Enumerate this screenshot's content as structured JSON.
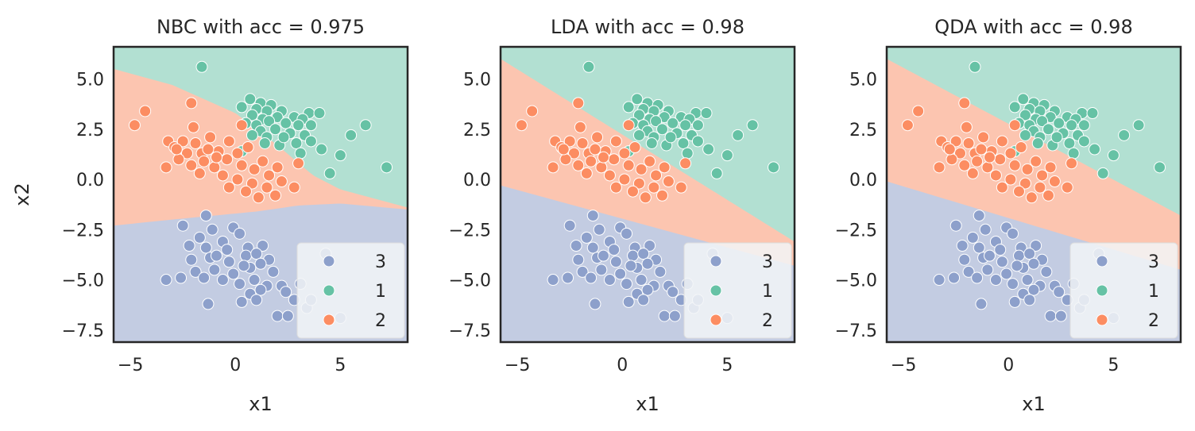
{
  "colors": {
    "class_3": "#8da0cb",
    "class_1": "#66c2a5",
    "class_2": "#fc8d62",
    "region_3": "#c3cce2",
    "region_1": "#b2e0d2",
    "region_2": "#fcc5b0",
    "legend_bg": "#f2f4f7",
    "frame": "#262626"
  },
  "chart_data": [
    {
      "type": "scatter",
      "title": "NBC with acc = 0.975",
      "xlabel": "x1",
      "ylabel": "x2",
      "xlim": [
        -5.8,
        8.2
      ],
      "ylim": [
        -8.1,
        6.6
      ],
      "x_ticks": [
        -5,
        0,
        5
      ],
      "x_tick_labels": [
        "−5",
        "0",
        "5"
      ],
      "y_ticks": [
        5.0,
        2.5,
        0.0,
        -2.5,
        -5.0,
        -7.5
      ],
      "y_tick_labels": [
        "5.0",
        "2.5",
        "0.0",
        "−2.5",
        "−5.0",
        "−7.5"
      ],
      "legend": {
        "location": "lower-right",
        "entries": [
          "3",
          "1",
          "2"
        ]
      },
      "decision_boundaries": {
        "boundary_1_2": [
          [
            -5.8,
            5.5
          ],
          [
            -3,
            4.7
          ],
          [
            0,
            3.3
          ],
          [
            2,
            1.7
          ],
          [
            3.7,
            0.2
          ],
          [
            5,
            -0.5
          ],
          [
            8.2,
            -1.4
          ]
        ],
        "boundary_2_3": [
          [
            -5.8,
            -2.3
          ],
          [
            -3,
            -2.0
          ],
          [
            -1,
            -1.8
          ],
          [
            1,
            -1.6
          ],
          [
            3,
            -1.3
          ],
          [
            5,
            -1.2
          ],
          [
            8.2,
            -1.5
          ]
        ]
      }
    },
    {
      "type": "scatter",
      "title": "LDA with acc = 0.98",
      "xlabel": "x1",
      "ylabel": "",
      "xlim": [
        -5.8,
        8.2
      ],
      "ylim": [
        -8.1,
        6.6
      ],
      "x_ticks": [
        -5,
        0,
        5
      ],
      "x_tick_labels": [
        "−5",
        "0",
        "5"
      ],
      "y_ticks": [
        5.0,
        2.5,
        0.0,
        -2.5,
        -5.0,
        -7.5
      ],
      "y_tick_labels": [
        "5.0",
        "2.5",
        "0.0",
        "−2.5",
        "−5.0",
        "−7.5"
      ],
      "legend": {
        "location": "lower-right",
        "entries": [
          "3",
          "1",
          "2"
        ]
      },
      "decision_boundaries": {
        "boundary_1_2": [
          [
            -5.8,
            6.0
          ],
          [
            8.2,
            -3.1
          ]
        ],
        "boundary_2_3": [
          [
            -5.8,
            -0.3
          ],
          [
            8.2,
            -4.3
          ]
        ]
      }
    },
    {
      "type": "scatter",
      "title": "QDA with acc = 0.98",
      "xlabel": "x1",
      "ylabel": "",
      "xlim": [
        -5.8,
        8.2
      ],
      "ylim": [
        -8.1,
        6.6
      ],
      "x_ticks": [
        -5,
        0,
        5
      ],
      "x_tick_labels": [
        "−5",
        "0",
        "5"
      ],
      "y_ticks": [
        5.0,
        2.5,
        0.0,
        -2.5,
        -5.0,
        -7.5
      ],
      "y_tick_labels": [
        "5.0",
        "2.5",
        "0.0",
        "−2.5",
        "−5.0",
        "−7.5"
      ],
      "legend": {
        "location": "lower-right",
        "entries": [
          "3",
          "1",
          "2"
        ]
      },
      "decision_boundaries": {
        "boundary_1_2": [
          [
            -5.8,
            6.0
          ],
          [
            8.2,
            -1.8
          ]
        ],
        "boundary_2_3": [
          [
            -5.8,
            -0.1
          ],
          [
            8.2,
            -4.5
          ]
        ]
      }
    }
  ],
  "points": {
    "class_1": [
      [
        -1.6,
        5.6
      ],
      [
        0.7,
        4.0
      ],
      [
        1.2,
        3.8
      ],
      [
        1.7,
        3.7
      ],
      [
        0.3,
        3.6
      ],
      [
        1.0,
        3.5
      ],
      [
        1.5,
        3.4
      ],
      [
        2.2,
        3.4
      ],
      [
        3.5,
        3.3
      ],
      [
        4.0,
        3.3
      ],
      [
        0.8,
        3.2
      ],
      [
        1.3,
        3.0
      ],
      [
        2.0,
        3.1
      ],
      [
        2.8,
        3.1
      ],
      [
        3.2,
        3.0
      ],
      [
        0.5,
        2.8
      ],
      [
        1.0,
        2.7
      ],
      [
        1.6,
        2.9
      ],
      [
        2.4,
        2.8
      ],
      [
        3.0,
        2.7
      ],
      [
        3.6,
        2.7
      ],
      [
        1.2,
        2.4
      ],
      [
        1.9,
        2.5
      ],
      [
        2.6,
        2.3
      ],
      [
        3.3,
        2.2
      ],
      [
        6.2,
        2.7
      ],
      [
        5.5,
        2.2
      ],
      [
        2.9,
        1.8
      ],
      [
        2.1,
        1.7
      ],
      [
        1.5,
        2.1
      ],
      [
        0.8,
        2.2
      ],
      [
        4.1,
        1.5
      ],
      [
        3.1,
        1.3
      ],
      [
        0.3,
        1.4
      ],
      [
        5.0,
        1.2
      ],
      [
        7.2,
        0.6
      ],
      [
        4.5,
        0.3
      ],
      [
        3.6,
        1.9
      ],
      [
        2.3,
        2.1
      ],
      [
        1.4,
        1.8
      ]
    ],
    "class_2": [
      [
        -4.8,
        2.7
      ],
      [
        -4.3,
        3.4
      ],
      [
        -2.1,
        3.8
      ],
      [
        -2.0,
        2.6
      ],
      [
        0.3,
        2.7
      ],
      [
        -3.2,
        1.9
      ],
      [
        -2.9,
        1.6
      ],
      [
        -2.5,
        1.9
      ],
      [
        -2.3,
        1.3
      ],
      [
        -1.9,
        1.8
      ],
      [
        -1.6,
        1.3
      ],
      [
        -1.2,
        2.1
      ],
      [
        -0.8,
        1.4
      ],
      [
        -0.3,
        1.9
      ],
      [
        0.1,
        1.3
      ],
      [
        -2.7,
        1.0
      ],
      [
        -2.1,
        0.7
      ],
      [
        -1.5,
        0.9
      ],
      [
        -1.0,
        0.6
      ],
      [
        -0.4,
        1.0
      ],
      [
        0.3,
        0.7
      ],
      [
        0.9,
        0.5
      ],
      [
        1.3,
        0.9
      ],
      [
        2.0,
        0.6
      ],
      [
        -3.3,
        0.6
      ],
      [
        -0.6,
        0.2
      ],
      [
        0.1,
        0.0
      ],
      [
        0.8,
        -0.2
      ],
      [
        1.5,
        -0.4
      ],
      [
        2.2,
        -0.1
      ],
      [
        2.8,
        -0.4
      ],
      [
        1.1,
        -0.9
      ],
      [
        1.9,
        -0.8
      ],
      [
        -0.3,
        -0.4
      ],
      [
        0.5,
        -0.6
      ],
      [
        -2.8,
        1.5
      ],
      [
        -1.3,
        1.5
      ],
      [
        -0.9,
        1.1
      ],
      [
        0.6,
        1.6
      ],
      [
        3.0,
        0.8
      ],
      [
        1.6,
        0.2
      ],
      [
        -1.7,
        0.3
      ]
    ],
    "class_3": [
      [
        -1.4,
        -1.8
      ],
      [
        -2.5,
        -2.3
      ],
      [
        -0.1,
        -2.4
      ],
      [
        -1.1,
        -2.5
      ],
      [
        -1.7,
        -2.9
      ],
      [
        -0.6,
        -3.1
      ],
      [
        0.2,
        -2.7
      ],
      [
        -2.2,
        -3.3
      ],
      [
        -1.4,
        -3.4
      ],
      [
        -0.4,
        -3.5
      ],
      [
        0.6,
        -3.4
      ],
      [
        1.3,
        -3.3
      ],
      [
        -2.1,
        -4.0
      ],
      [
        -1.2,
        -3.9
      ],
      [
        -0.3,
        -4.1
      ],
      [
        0.5,
        -3.8
      ],
      [
        1.0,
        -3.7
      ],
      [
        1.6,
        -4.0
      ],
      [
        -1.9,
        -4.6
      ],
      [
        -1.0,
        -4.5
      ],
      [
        -0.1,
        -4.7
      ],
      [
        0.7,
        -4.4
      ],
      [
        1.2,
        -4.2
      ],
      [
        1.8,
        -4.6
      ],
      [
        -2.6,
        -4.9
      ],
      [
        -1.5,
        -4.9
      ],
      [
        -0.6,
        -5.0
      ],
      [
        0.2,
        -5.2
      ],
      [
        0.9,
        -5.0
      ],
      [
        1.5,
        -5.3
      ],
      [
        -3.3,
        -5.0
      ],
      [
        0.7,
        -5.7
      ],
      [
        1.2,
        -5.5
      ],
      [
        2.2,
        -5.3
      ],
      [
        2.4,
        -5.6
      ],
      [
        0.3,
        -6.1
      ],
      [
        1.0,
        -6.0
      ],
      [
        -1.3,
        -6.2
      ],
      [
        2.8,
        -6.0
      ],
      [
        3.1,
        -5.2
      ],
      [
        3.4,
        -6.4
      ],
      [
        2.0,
        -6.8
      ],
      [
        2.5,
        -6.8
      ],
      [
        5.0,
        -6.9
      ],
      [
        3.6,
        -6.0
      ],
      [
        4.3,
        -3.7
      ],
      [
        -0.9,
        -3.8
      ],
      [
        0.4,
        -4.3
      ]
    ]
  }
}
